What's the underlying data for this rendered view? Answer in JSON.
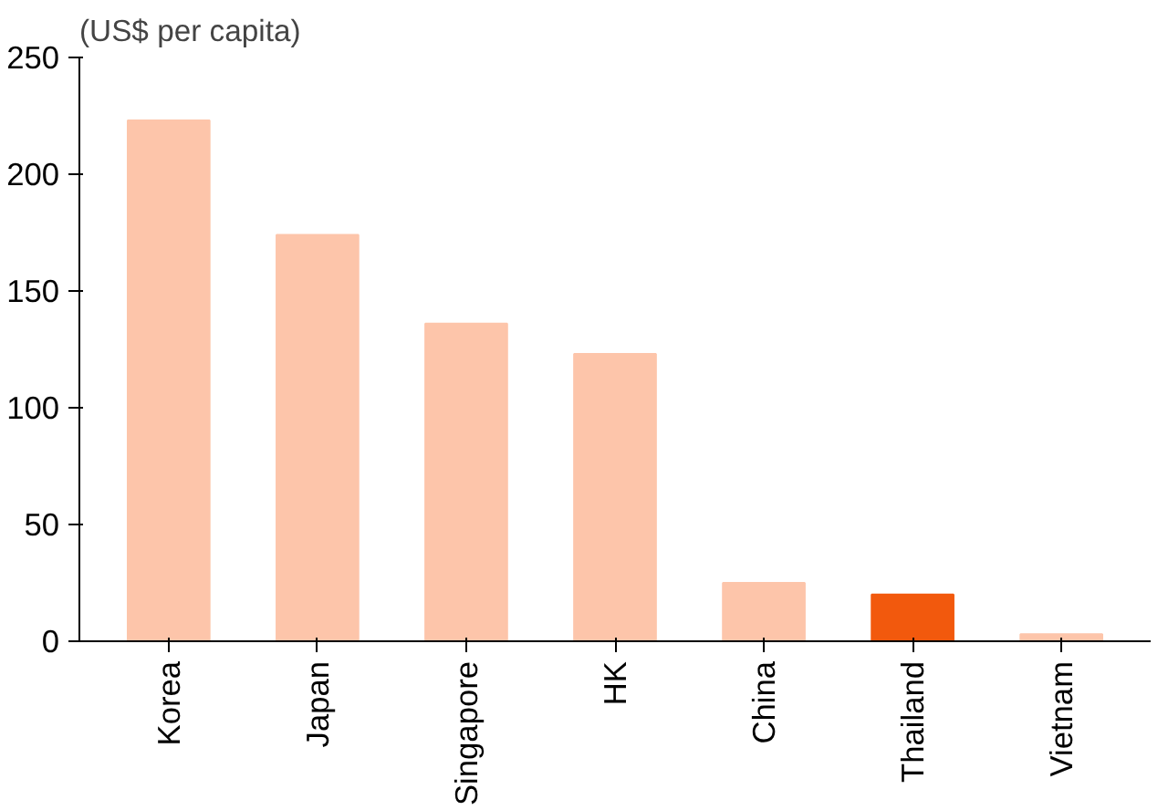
{
  "chart_data": {
    "type": "bar",
    "ylabel": "(US$ per capita)",
    "categories": [
      "Korea",
      "Japan",
      "Singapore",
      "HK",
      "China",
      "Thailand",
      "Vietnam"
    ],
    "values": [
      223,
      174,
      136,
      123,
      25,
      20,
      3
    ],
    "colors": [
      "#fdc5aa",
      "#fdc5aa",
      "#fdc5aa",
      "#fdc5aa",
      "#fdc5aa",
      "#f2590d",
      "#fdc5aa"
    ],
    "ylim": [
      0,
      250
    ],
    "yticks": [
      0,
      50,
      100,
      150,
      200,
      250
    ],
    "grid": false
  }
}
